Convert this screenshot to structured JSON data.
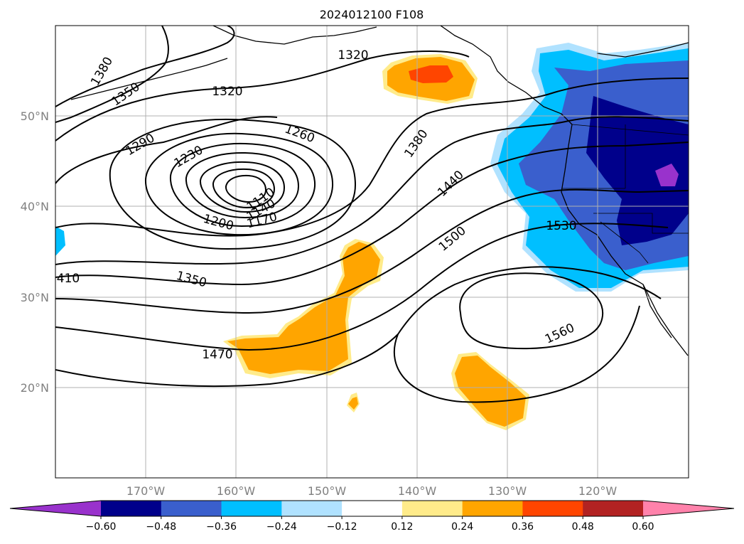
{
  "title": "2024012100 F108",
  "map": {
    "lat_labels": [
      "50°N",
      "40°N",
      "30°N",
      "20°N"
    ],
    "lon_labels": [
      "170°W",
      "160°W",
      "150°W",
      "140°W",
      "130°W",
      "120°W"
    ],
    "contour_labels": [
      "1380",
      "1350",
      "1320",
      "1320",
      "1290",
      "1260",
      "1230",
      "1200",
      "1170",
      "1140",
      "1110",
      "1350",
      "410",
      "1470",
      "1380",
      "1440",
      "1500",
      "1530",
      "1560"
    ]
  },
  "colorbar": {
    "tick_labels": [
      "−0.60",
      "−0.48",
      "−0.36",
      "−0.24",
      "−0.12",
      "0.12",
      "0.24",
      "0.36",
      "0.48",
      "0.60"
    ],
    "colors": [
      "#9932cc",
      "#00008b",
      "#3a5fcd",
      "#00bfff",
      "#b0e2ff",
      "#ffffff",
      "#ffeb8a",
      "#ffa500",
      "#ff4500",
      "#b22222",
      "#ff82ab"
    ]
  }
}
